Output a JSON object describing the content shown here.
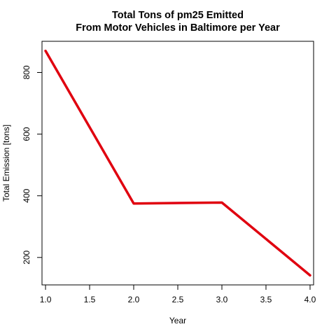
{
  "chart_data": {
    "type": "line",
    "title": "Total Tons of pm25 Emitted",
    "subtitle": "From Motor Vehicles in Baltimore per Year",
    "xlabel": "Year",
    "ylabel": "Total Emission [tons]",
    "x": [
      1,
      2,
      3,
      4
    ],
    "series": [
      {
        "values": [
          870,
          375,
          378,
          142
        ],
        "color": "#e0000f"
      }
    ],
    "xlim": [
      0.96,
      4.04
    ],
    "ylim": [
      111,
      901
    ],
    "x_ticks": [
      1.0,
      1.5,
      2.0,
      2.5,
      3.0,
      3.5,
      4.0
    ],
    "x_tick_labels": [
      "1.0",
      "1.5",
      "2.0",
      "2.5",
      "3.0",
      "3.5",
      "4.0"
    ],
    "y_ticks": [
      200,
      400,
      600,
      800
    ],
    "y_tick_labels": [
      "200",
      "400",
      "600",
      "800"
    ],
    "grid": false,
    "legend": "none",
    "box": true
  }
}
